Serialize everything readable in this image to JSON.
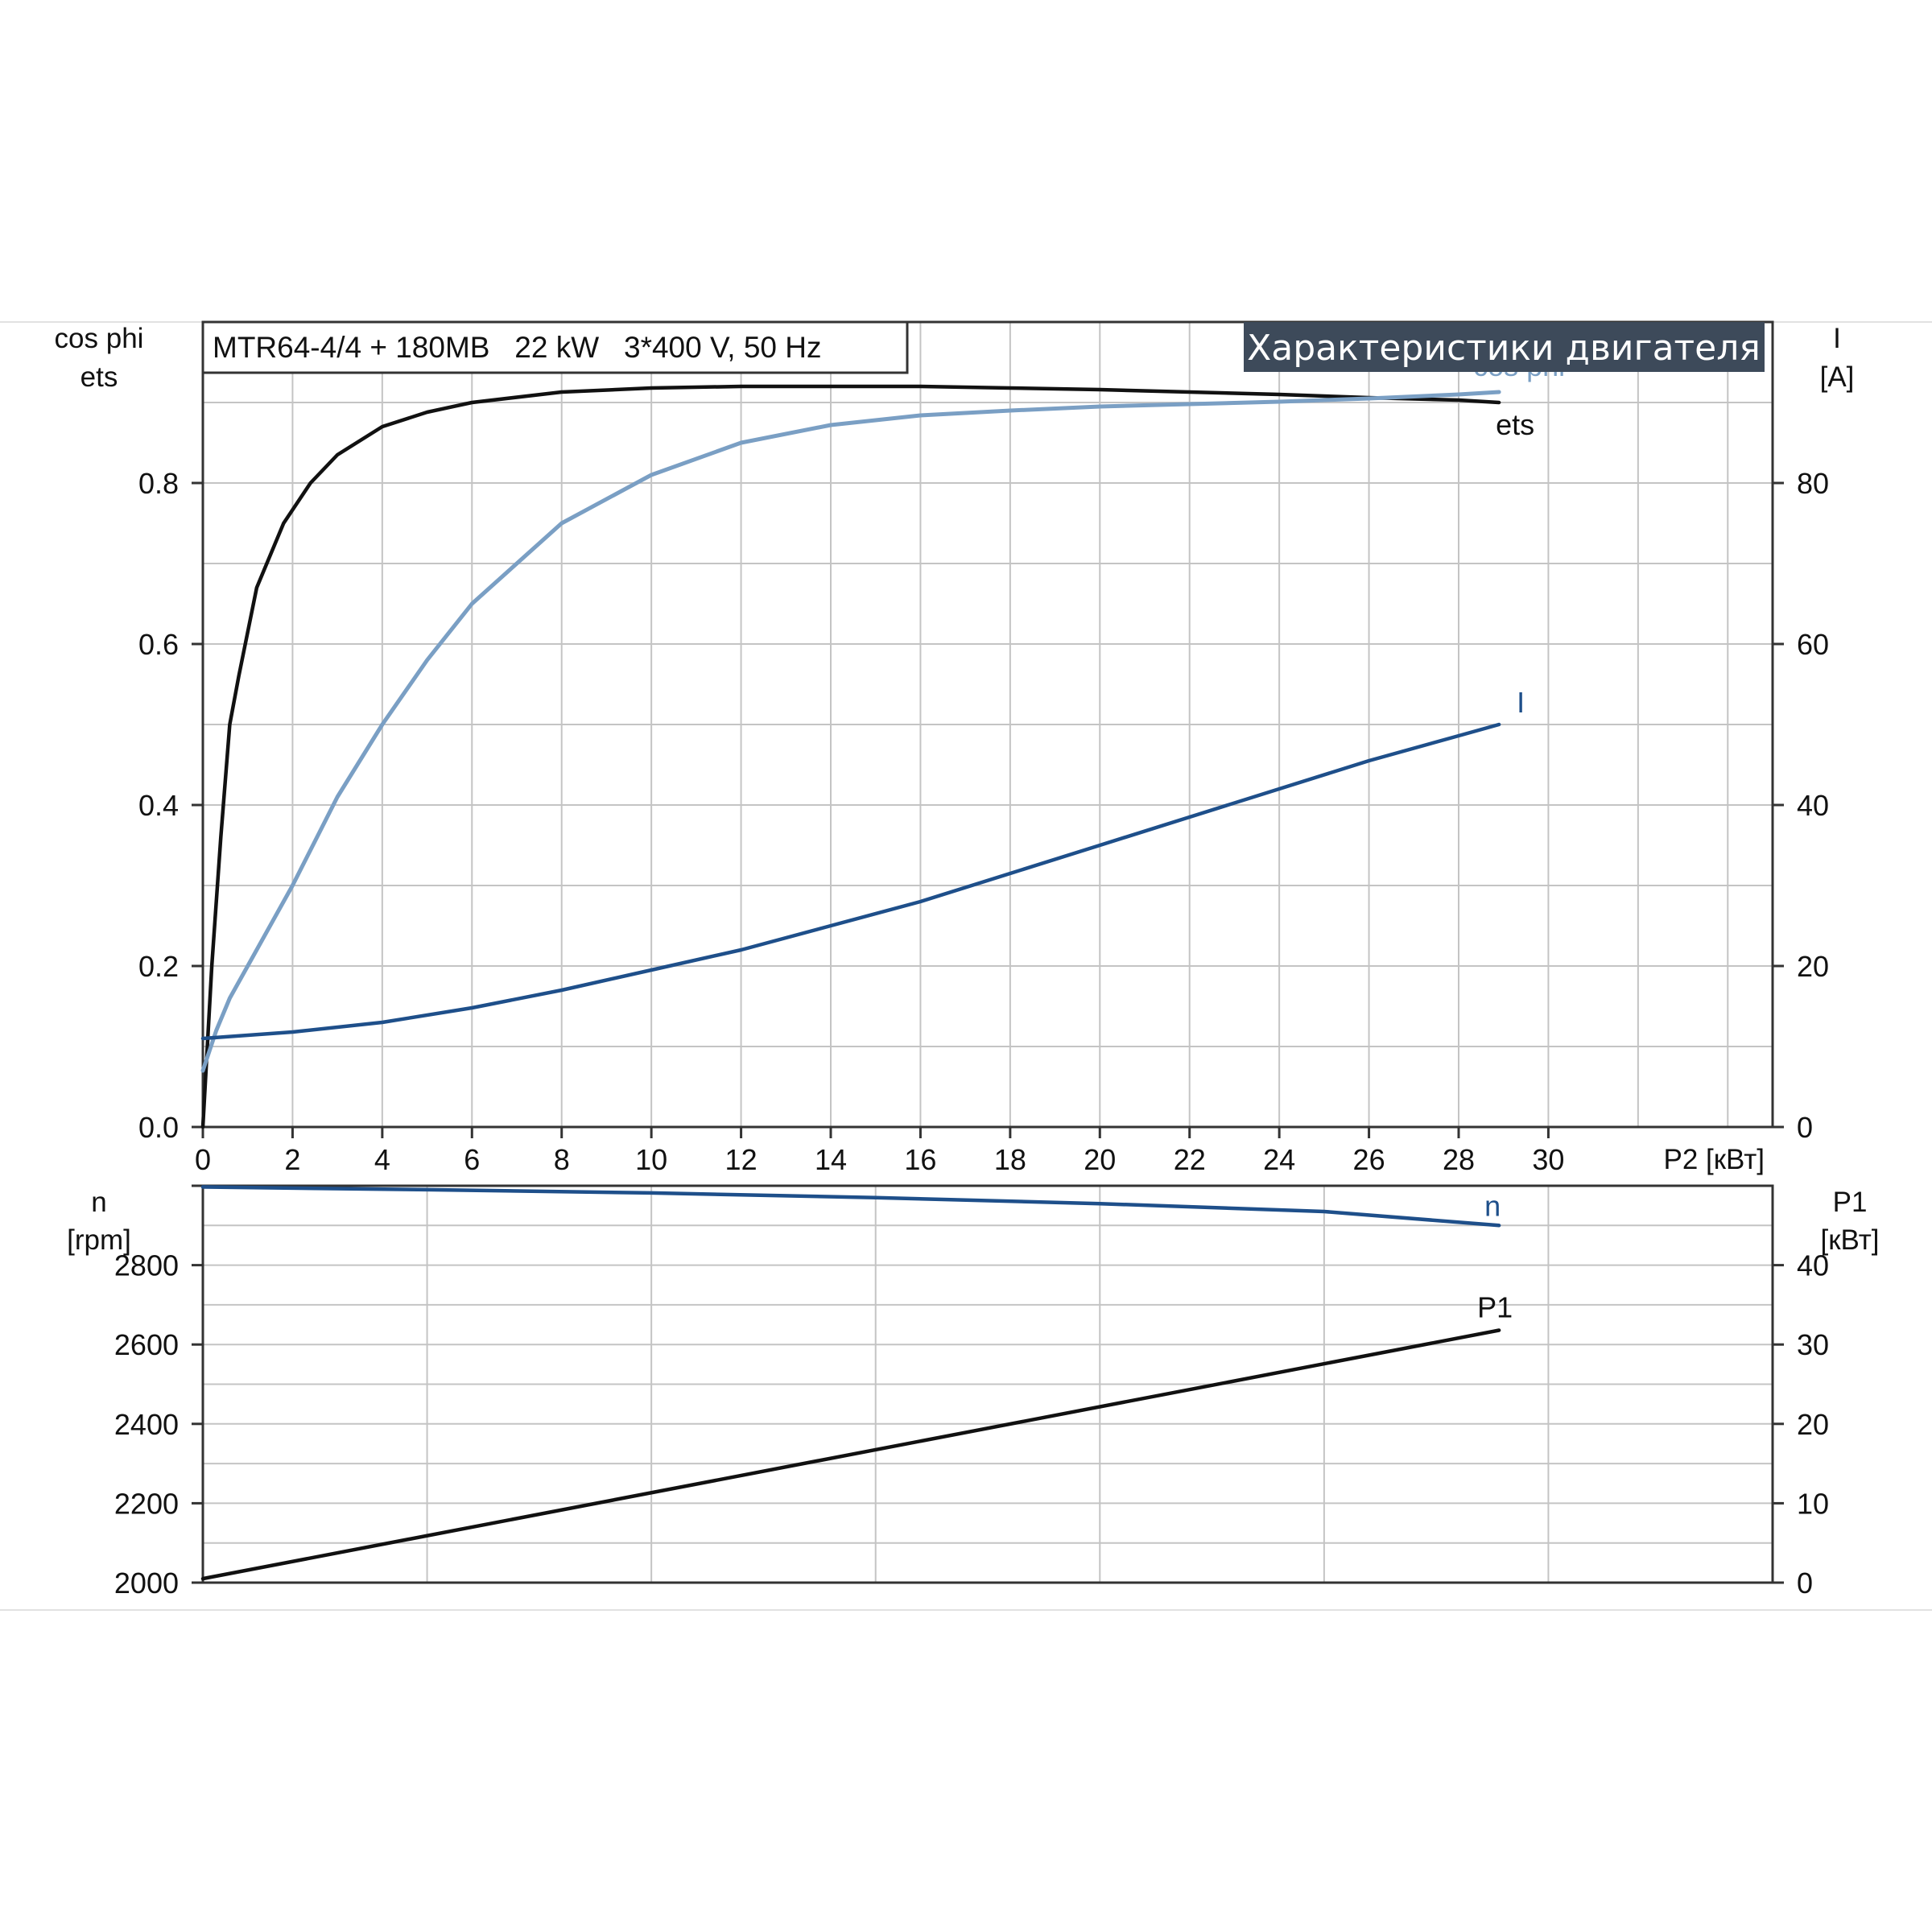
{
  "header": {
    "model": "MTR64-4/4 + 180MB   22 kW   3*400 V, 50 Hz",
    "title": "Характеристики двигателя"
  },
  "colors": {
    "ets": "#111111",
    "cos_phi": "#7a9fc4",
    "I": "#1e4f8a",
    "n": "#1e4f8a",
    "P1": "#111111",
    "banner": "#3d4a5a",
    "grid": "#c4c4c4"
  },
  "chart_data": [
    {
      "type": "line",
      "name": "upper",
      "x_axis": {
        "label": "P2 [кВт]",
        "range": [
          0,
          35
        ],
        "ticks": [
          0,
          2,
          4,
          6,
          8,
          10,
          12,
          14,
          16,
          18,
          20,
          22,
          24,
          26,
          28,
          30
        ]
      },
      "y_left": {
        "label_line1": "cos phi",
        "label_line2": "ets",
        "range": [
          0,
          1.0
        ],
        "ticks": [
          "0.0",
          "0.2",
          "0.4",
          "0.6",
          "0.8"
        ]
      },
      "y_right": {
        "label_line1": "I",
        "label_line2": "[A]",
        "range": [
          0,
          100
        ],
        "ticks": [
          "0",
          "20",
          "40",
          "60",
          "80"
        ]
      },
      "grid": true,
      "series": [
        {
          "name": "ets",
          "axis": "left",
          "label": "ets",
          "x": [
            0,
            0.2,
            0.4,
            0.6,
            0.8,
            1.2,
            1.8,
            2.4,
            3,
            4,
            5,
            6,
            8,
            10,
            12,
            14,
            16,
            18,
            20,
            22,
            24,
            26,
            28,
            28.9
          ],
          "y": [
            0,
            0.2,
            0.36,
            0.5,
            0.56,
            0.67,
            0.75,
            0.8,
            0.835,
            0.87,
            0.888,
            0.9,
            0.913,
            0.918,
            0.92,
            0.92,
            0.92,
            0.918,
            0.916,
            0.913,
            0.91,
            0.906,
            0.903,
            0.9
          ]
        },
        {
          "name": "cos phi",
          "axis": "left",
          "label": "cos phi",
          "x": [
            0,
            0.3,
            0.6,
            1,
            2,
            3,
            4,
            5,
            6,
            8,
            10,
            12,
            14,
            16,
            18,
            20,
            22,
            24,
            26,
            28,
            28.9
          ],
          "y": [
            0.07,
            0.12,
            0.16,
            0.2,
            0.3,
            0.41,
            0.5,
            0.58,
            0.65,
            0.75,
            0.81,
            0.85,
            0.872,
            0.884,
            0.89,
            0.895,
            0.898,
            0.901,
            0.905,
            0.91,
            0.913
          ]
        },
        {
          "name": "I",
          "axis": "right",
          "label": "I",
          "x": [
            0,
            2,
            4,
            6,
            8,
            10,
            12,
            14,
            16,
            18,
            20,
            22,
            24,
            26,
            28,
            28.9
          ],
          "y": [
            11,
            11.8,
            13,
            14.8,
            17,
            19.5,
            22,
            25,
            28,
            31.5,
            35,
            38.5,
            42,
            45.5,
            48.6,
            50
          ]
        }
      ]
    },
    {
      "type": "line",
      "name": "lower",
      "x_axis": {
        "range": [
          0,
          35
        ],
        "ticks": []
      },
      "y_left": {
        "label_line1": "n",
        "label_line2": "[rpm]",
        "range": [
          2000,
          3000
        ],
        "ticks": [
          "2000",
          "2200",
          "2400",
          "2600",
          "2800"
        ]
      },
      "y_right": {
        "label_line1": "P1",
        "label_line2": "[кВт]",
        "range": [
          0,
          50
        ],
        "ticks": [
          "0",
          "10",
          "20",
          "30",
          "40"
        ]
      },
      "grid": true,
      "series": [
        {
          "name": "n",
          "axis": "left",
          "label": "n",
          "x": [
            0,
            5,
            10,
            15,
            20,
            25,
            28.9
          ],
          "y": [
            2997,
            2990,
            2982,
            2970,
            2955,
            2935,
            2900
          ]
        },
        {
          "name": "P1",
          "axis": "right",
          "label": "P1",
          "x": [
            0,
            28.9
          ],
          "y": [
            0.5,
            31.8
          ]
        }
      ]
    }
  ]
}
